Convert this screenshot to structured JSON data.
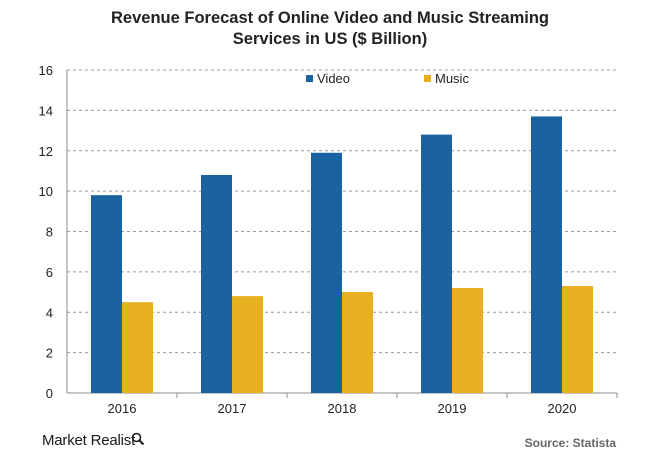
{
  "chart_data": {
    "type": "bar",
    "title_line1": "Revenue Forecast of Online Video and Music Streaming",
    "title_line2": "Services in US ($ Billion)",
    "categories": [
      "2016",
      "2017",
      "2018",
      "2019",
      "2020"
    ],
    "series": [
      {
        "name": "Video",
        "values": [
          9.8,
          10.8,
          11.9,
          12.8,
          13.7
        ],
        "color": "#1a63a0"
      },
      {
        "name": "Music",
        "values": [
          4.5,
          4.8,
          5.0,
          5.2,
          5.3
        ],
        "color": "#e6b022"
      }
    ],
    "ylim": [
      0,
      16
    ],
    "yticks": [
      "0",
      "2",
      "4",
      "6",
      "8",
      "10",
      "12",
      "14",
      "16"
    ],
    "grid": true,
    "gridline_style": "dashed",
    "legend_position": "top-center",
    "xlabel": "",
    "ylabel": ""
  },
  "footer": {
    "brand": "Market Realist",
    "brand_icon": "magnifier-icon",
    "source": "Source: Statista"
  }
}
